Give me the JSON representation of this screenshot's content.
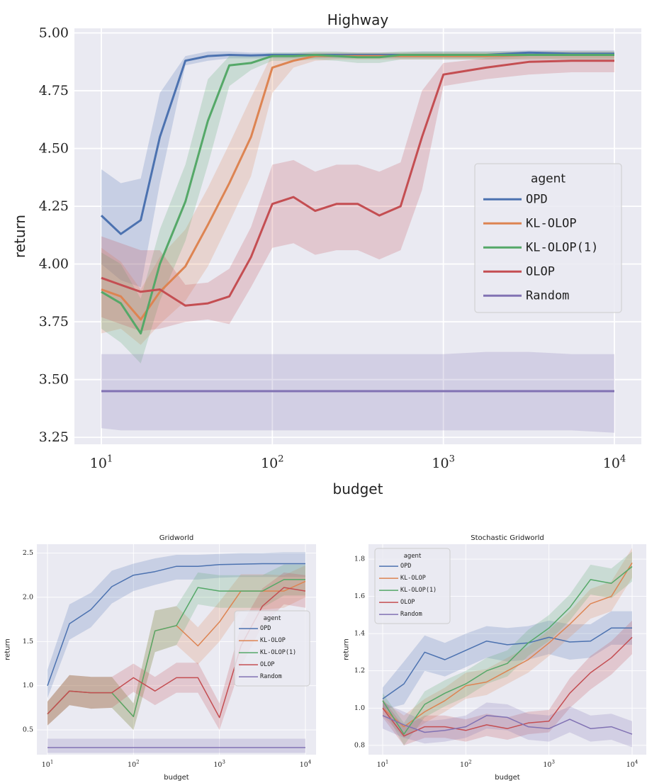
{
  "chart_data": [
    {
      "id": "highway",
      "type": "line",
      "title": "Highway",
      "xlabel": "budget",
      "ylabel": "return",
      "xscale": "log",
      "xlim": [
        10,
        10000
      ],
      "ylim": [
        3.22,
        5.02
      ],
      "xticks": [
        10,
        100,
        1000,
        10000
      ],
      "xtick_labels": [
        [
          "10",
          "1"
        ],
        [
          "10",
          "2"
        ],
        [
          "10",
          "3"
        ],
        [
          "10",
          "4"
        ]
      ],
      "yticks": [
        3.25,
        3.5,
        3.75,
        4.0,
        4.25,
        4.5,
        4.75,
        5.0
      ],
      "ytick_labels": [
        "3.25",
        "3.50",
        "3.75",
        "4.00",
        "4.25",
        "4.50",
        "4.75",
        "5.00"
      ],
      "grid": true,
      "legend": {
        "title": "agent",
        "placement": "center-right"
      },
      "x": [
        10,
        13,
        17,
        22,
        31,
        42,
        56,
        75,
        100,
        133,
        178,
        237,
        316,
        422,
        562,
        750,
        1000,
        1778,
        3162,
        5623,
        10000
      ],
      "series": [
        {
          "name": "OPD",
          "color": "#4c72b0",
          "values": [
            4.21,
            4.13,
            4.19,
            4.55,
            4.88,
            4.9,
            4.905,
            4.903,
            4.905,
            4.905,
            4.905,
            4.905,
            4.905,
            4.905,
            4.905,
            4.905,
            4.905,
            4.905,
            4.915,
            4.91,
            4.91
          ],
          "lower": [
            4.0,
            3.93,
            3.9,
            4.35,
            4.86,
            4.88,
            4.89,
            4.89,
            4.89,
            4.89,
            4.89,
            4.89,
            4.89,
            4.89,
            4.89,
            4.89,
            4.89,
            4.89,
            4.9,
            4.9,
            4.9
          ],
          "upper": [
            4.41,
            4.35,
            4.37,
            4.74,
            4.9,
            4.92,
            4.92,
            4.915,
            4.915,
            4.915,
            4.915,
            4.915,
            4.915,
            4.915,
            4.915,
            4.92,
            4.92,
            4.92,
            4.925,
            4.925,
            4.925
          ]
        },
        {
          "name": "KL-OLOP",
          "color": "#dd8452",
          "values": [
            3.89,
            3.86,
            3.76,
            3.88,
            3.99,
            4.17,
            4.35,
            4.55,
            4.85,
            4.88,
            4.9,
            4.9,
            4.9,
            4.9,
            4.9,
            4.9,
            4.9,
            4.9,
            4.905,
            4.905,
            4.905
          ],
          "lower": [
            3.7,
            3.72,
            3.65,
            3.74,
            3.84,
            3.99,
            4.18,
            4.38,
            4.74,
            4.85,
            4.88,
            4.885,
            4.885,
            4.885,
            4.885,
            4.885,
            4.885,
            4.885,
            4.89,
            4.89,
            4.89
          ],
          "upper": [
            4.07,
            4.01,
            3.89,
            4.03,
            4.15,
            4.33,
            4.52,
            4.72,
            4.91,
            4.91,
            4.915,
            4.915,
            4.915,
            4.915,
            4.915,
            4.915,
            4.915,
            4.915,
            4.92,
            4.92,
            4.92
          ]
        },
        {
          "name": "KL-OLOP(1)",
          "color": "#55a868",
          "values": [
            3.88,
            3.83,
            3.7,
            4.0,
            4.27,
            4.62,
            4.86,
            4.87,
            4.9,
            4.9,
            4.905,
            4.9,
            4.895,
            4.895,
            4.905,
            4.905,
            4.905,
            4.905,
            4.905,
            4.905,
            4.905
          ],
          "lower": [
            3.72,
            3.66,
            3.57,
            3.84,
            4.1,
            4.43,
            4.77,
            4.84,
            4.88,
            4.88,
            4.885,
            4.88,
            4.87,
            4.87,
            4.885,
            4.885,
            4.885,
            4.885,
            4.885,
            4.885,
            4.885
          ],
          "upper": [
            4.05,
            4.0,
            3.85,
            4.15,
            4.43,
            4.8,
            4.9,
            4.9,
            4.915,
            4.915,
            4.92,
            4.92,
            4.915,
            4.915,
            4.92,
            4.92,
            4.92,
            4.92,
            4.92,
            4.92,
            4.92
          ]
        },
        {
          "name": "OLOP",
          "color": "#c44e52",
          "values": [
            3.94,
            3.91,
            3.88,
            3.89,
            3.82,
            3.83,
            3.86,
            4.03,
            4.26,
            4.29,
            4.23,
            4.26,
            4.26,
            4.21,
            4.25,
            4.55,
            4.82,
            4.85,
            4.875,
            4.88,
            4.88
          ],
          "lower": [
            3.77,
            3.74,
            3.71,
            3.72,
            3.75,
            3.76,
            3.74,
            3.9,
            4.07,
            4.09,
            4.04,
            4.06,
            4.06,
            4.02,
            4.06,
            4.32,
            4.77,
            4.8,
            4.82,
            4.83,
            4.83
          ],
          "upper": [
            4.12,
            4.09,
            4.06,
            4.06,
            3.91,
            3.92,
            3.98,
            4.16,
            4.43,
            4.45,
            4.4,
            4.43,
            4.43,
            4.4,
            4.44,
            4.75,
            4.87,
            4.89,
            4.91,
            4.91,
            4.91
          ]
        },
        {
          "name": "Random",
          "color": "#8172b3",
          "values": [
            3.45,
            3.45,
            3.45,
            3.45,
            3.45,
            3.45,
            3.45,
            3.45,
            3.45,
            3.45,
            3.45,
            3.45,
            3.45,
            3.45,
            3.45,
            3.45,
            3.45,
            3.45,
            3.45,
            3.45,
            3.45
          ],
          "lower": [
            3.29,
            3.28,
            3.28,
            3.28,
            3.28,
            3.28,
            3.28,
            3.28,
            3.28,
            3.28,
            3.28,
            3.28,
            3.28,
            3.28,
            3.28,
            3.28,
            3.28,
            3.28,
            3.28,
            3.28,
            3.27
          ],
          "upper": [
            3.61,
            3.61,
            3.61,
            3.61,
            3.61,
            3.61,
            3.61,
            3.61,
            3.61,
            3.61,
            3.61,
            3.61,
            3.61,
            3.61,
            3.61,
            3.61,
            3.61,
            3.62,
            3.62,
            3.61,
            3.61
          ]
        }
      ]
    },
    {
      "id": "gridworld",
      "type": "line",
      "title": "Gridworld",
      "xlabel": "budget",
      "ylabel": "return",
      "xscale": "log",
      "xlim": [
        10,
        10000
      ],
      "ylim": [
        0.22,
        2.6
      ],
      "xticks": [
        10,
        100,
        1000,
        10000
      ],
      "xtick_labels": [
        [
          "10",
          "1"
        ],
        [
          "10",
          "2"
        ],
        [
          "10",
          "3"
        ],
        [
          "10",
          "4"
        ]
      ],
      "yticks": [
        0.5,
        1.0,
        1.5,
        2.0,
        2.5
      ],
      "ytick_labels": [
        "0.5",
        "1.0",
        "1.5",
        "2.0",
        "2.5"
      ],
      "grid": true,
      "legend": {
        "title": "agent",
        "placement": "center-right"
      },
      "x": [
        10,
        18,
        32,
        56,
        100,
        178,
        316,
        562,
        1000,
        1778,
        3162,
        5623,
        10000
      ],
      "series": [
        {
          "name": "OPD",
          "color": "#4c72b0",
          "values": [
            1.0,
            1.7,
            1.86,
            2.12,
            2.25,
            2.29,
            2.35,
            2.35,
            2.37,
            2.375,
            2.38,
            2.38,
            2.38
          ],
          "lower": [
            0.86,
            1.52,
            1.66,
            1.93,
            2.07,
            2.14,
            2.2,
            2.2,
            2.22,
            2.23,
            2.23,
            2.23,
            2.23
          ],
          "upper": [
            1.18,
            1.92,
            2.05,
            2.3,
            2.38,
            2.44,
            2.48,
            2.48,
            2.49,
            2.5,
            2.5,
            2.51,
            2.51
          ]
        },
        {
          "name": "KL-OLOP",
          "color": "#dd8452",
          "values": [
            0.68,
            0.94,
            0.92,
            0.92,
            0.65,
            1.62,
            1.68,
            1.45,
            1.72,
            2.07,
            2.07,
            2.07,
            2.18
          ],
          "lower": [
            0.55,
            0.78,
            0.74,
            0.75,
            0.5,
            1.38,
            1.46,
            1.24,
            1.5,
            1.85,
            1.86,
            1.88,
            2.0
          ],
          "upper": [
            0.82,
            1.12,
            1.1,
            1.1,
            0.8,
            1.85,
            1.9,
            1.66,
            1.95,
            2.26,
            2.26,
            2.25,
            2.36
          ]
        },
        {
          "name": "KL-OLOP(1)",
          "color": "#55a868",
          "values": [
            0.68,
            0.94,
            0.92,
            0.92,
            0.65,
            1.62,
            1.68,
            2.11,
            2.07,
            2.07,
            2.07,
            2.2,
            2.2
          ],
          "lower": [
            0.55,
            0.78,
            0.74,
            0.75,
            0.5,
            1.38,
            1.46,
            1.92,
            1.88,
            1.88,
            1.88,
            2.02,
            2.02
          ],
          "upper": [
            0.82,
            1.12,
            1.1,
            1.1,
            0.8,
            1.85,
            1.9,
            2.28,
            2.25,
            2.25,
            2.25,
            2.37,
            2.37
          ]
        },
        {
          "name": "OLOP",
          "color": "#c44e52",
          "values": [
            0.68,
            0.94,
            0.92,
            0.92,
            1.09,
            0.94,
            1.09,
            1.09,
            0.64,
            1.45,
            1.9,
            2.11,
            2.07
          ],
          "lower": [
            0.55,
            0.78,
            0.74,
            0.75,
            0.93,
            0.78,
            0.92,
            0.92,
            0.5,
            1.22,
            1.68,
            1.92,
            1.88
          ],
          "upper": [
            0.82,
            1.12,
            1.1,
            1.1,
            1.25,
            1.1,
            1.26,
            1.26,
            0.8,
            1.68,
            2.1,
            2.28,
            2.25
          ]
        },
        {
          "name": "Random",
          "color": "#8172b3",
          "values": [
            0.3,
            0.3,
            0.3,
            0.3,
            0.3,
            0.3,
            0.3,
            0.3,
            0.3,
            0.3,
            0.3,
            0.3,
            0.3
          ],
          "lower": [
            0.24,
            0.24,
            0.24,
            0.24,
            0.24,
            0.24,
            0.24,
            0.24,
            0.24,
            0.24,
            0.24,
            0.24,
            0.24
          ],
          "upper": [
            0.4,
            0.4,
            0.4,
            0.4,
            0.4,
            0.4,
            0.4,
            0.4,
            0.4,
            0.4,
            0.4,
            0.4,
            0.4
          ]
        }
      ]
    },
    {
      "id": "stochastic-gridworld",
      "type": "line",
      "title": "Stochastic Gridworld",
      "xlabel": "budget",
      "ylabel": "return",
      "xscale": "log",
      "xlim": [
        10,
        10000
      ],
      "ylim": [
        0.75,
        1.88
      ],
      "xticks": [
        10,
        100,
        1000,
        10000
      ],
      "xtick_labels": [
        [
          "10",
          "1"
        ],
        [
          "10",
          "2"
        ],
        [
          "10",
          "3"
        ],
        [
          "10",
          "4"
        ]
      ],
      "yticks": [
        0.8,
        1.0,
        1.2,
        1.4,
        1.6,
        1.8
      ],
      "ytick_labels": [
        "0.8",
        "1.0",
        "1.2",
        "1.4",
        "1.6",
        "1.8"
      ],
      "grid": true,
      "legend": {
        "title": "agent",
        "placement": "upper-left"
      },
      "x": [
        10,
        18,
        32,
        56,
        100,
        178,
        316,
        562,
        1000,
        1778,
        3162,
        5623,
        10000
      ],
      "series": [
        {
          "name": "OPD",
          "color": "#4c72b0",
          "values": [
            1.05,
            1.13,
            1.3,
            1.26,
            1.31,
            1.36,
            1.34,
            1.35,
            1.38,
            1.355,
            1.36,
            1.43,
            1.43
          ],
          "lower": [
            0.99,
            1.02,
            1.2,
            1.17,
            1.22,
            1.27,
            1.25,
            1.26,
            1.29,
            1.26,
            1.27,
            1.34,
            1.34
          ],
          "upper": [
            1.11,
            1.25,
            1.39,
            1.35,
            1.4,
            1.44,
            1.43,
            1.44,
            1.47,
            1.45,
            1.45,
            1.52,
            1.52
          ]
        },
        {
          "name": "KL-OLOP",
          "color": "#dd8452",
          "values": [
            1.0,
            0.9,
            0.98,
            1.04,
            1.12,
            1.14,
            1.2,
            1.26,
            1.35,
            1.45,
            1.56,
            1.6,
            1.78
          ],
          "lower": [
            0.96,
            0.84,
            0.92,
            0.98,
            1.05,
            1.07,
            1.13,
            1.19,
            1.28,
            1.38,
            1.48,
            1.52,
            1.7
          ],
          "upper": [
            1.04,
            0.96,
            1.05,
            1.11,
            1.19,
            1.21,
            1.27,
            1.33,
            1.42,
            1.52,
            1.64,
            1.68,
            1.86
          ]
        },
        {
          "name": "KL-OLOP(1)",
          "color": "#55a868",
          "values": [
            1.04,
            0.86,
            1.02,
            1.08,
            1.13,
            1.2,
            1.24,
            1.35,
            1.43,
            1.54,
            1.69,
            1.67,
            1.76
          ],
          "lower": [
            1.0,
            0.8,
            0.95,
            1.01,
            1.06,
            1.13,
            1.17,
            1.28,
            1.36,
            1.47,
            1.61,
            1.59,
            1.68
          ],
          "upper": [
            1.08,
            0.92,
            1.09,
            1.15,
            1.2,
            1.27,
            1.31,
            1.42,
            1.5,
            1.61,
            1.77,
            1.75,
            1.84
          ]
        },
        {
          "name": "OLOP",
          "color": "#c44e52",
          "values": [
            1.0,
            0.85,
            0.9,
            0.9,
            0.88,
            0.91,
            0.89,
            0.92,
            0.93,
            1.08,
            1.19,
            1.27,
            1.38
          ],
          "lower": [
            0.95,
            0.8,
            0.84,
            0.84,
            0.82,
            0.85,
            0.83,
            0.86,
            0.87,
            1.0,
            1.1,
            1.18,
            1.29
          ],
          "upper": [
            1.05,
            0.9,
            0.96,
            0.96,
            0.94,
            0.97,
            0.95,
            0.98,
            0.99,
            1.16,
            1.28,
            1.36,
            1.47
          ]
        },
        {
          "name": "Random",
          "color": "#8172b3",
          "values": [
            0.96,
            0.91,
            0.87,
            0.88,
            0.9,
            0.96,
            0.95,
            0.9,
            0.89,
            0.94,
            0.89,
            0.9,
            0.86
          ],
          "lower": [
            0.89,
            0.84,
            0.81,
            0.82,
            0.84,
            0.89,
            0.88,
            0.83,
            0.82,
            0.87,
            0.82,
            0.83,
            0.79
          ],
          "upper": [
            1.03,
            0.98,
            0.93,
            0.94,
            0.96,
            1.03,
            1.02,
            0.97,
            0.96,
            1.01,
            0.96,
            0.97,
            0.93
          ]
        }
      ]
    }
  ]
}
